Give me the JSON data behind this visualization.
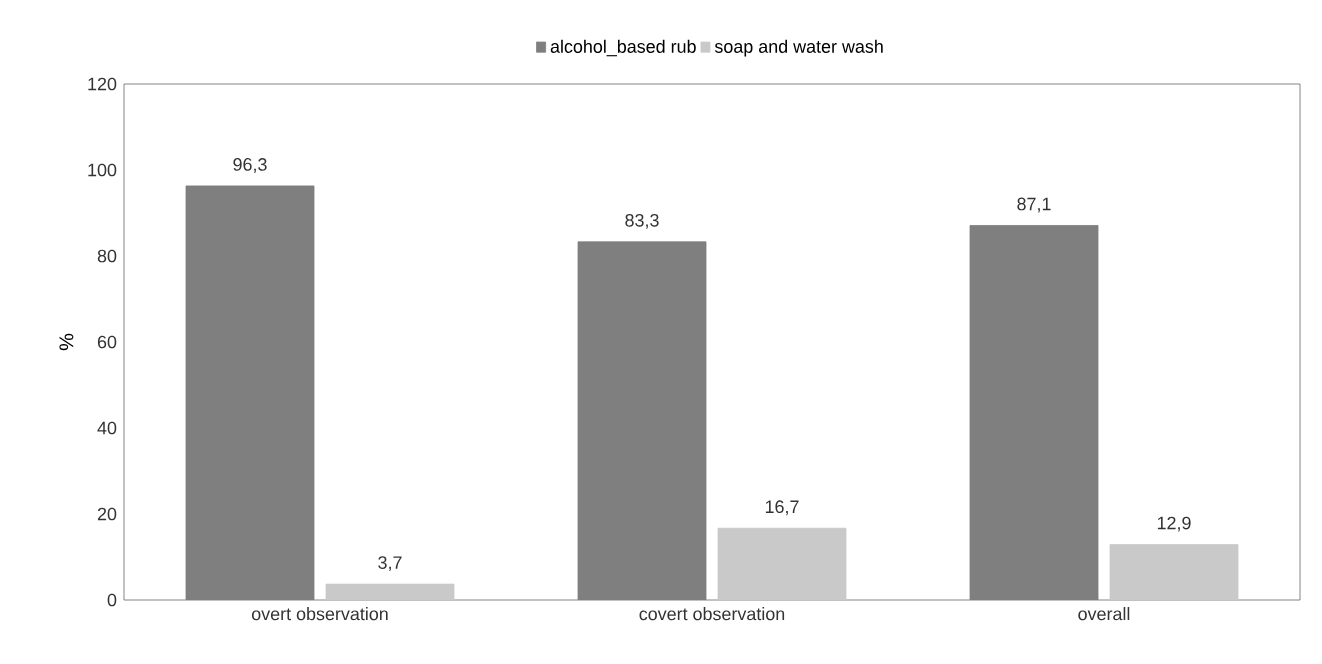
{
  "chart_data": {
    "type": "bar",
    "ylabel": "%",
    "categories": [
      "overt observation",
      "covert observation",
      "overall"
    ],
    "series": [
      {
        "name": "alcohol_based rub",
        "color": "#7f7f7f",
        "values": [
          96.3,
          83.3,
          87.1
        ],
        "value_labels": [
          "96,3",
          "83,3",
          "87,1"
        ]
      },
      {
        "name": "soap and water wash",
        "color": "#c9c9c9",
        "values": [
          3.7,
          16.7,
          12.9
        ],
        "value_labels": [
          "3,7",
          "16,7",
          "12,9"
        ]
      }
    ],
    "ylim": [
      0,
      120
    ],
    "yticks": [
      0,
      20,
      40,
      60,
      80,
      100,
      120
    ],
    "grid": false,
    "legend": "top"
  }
}
